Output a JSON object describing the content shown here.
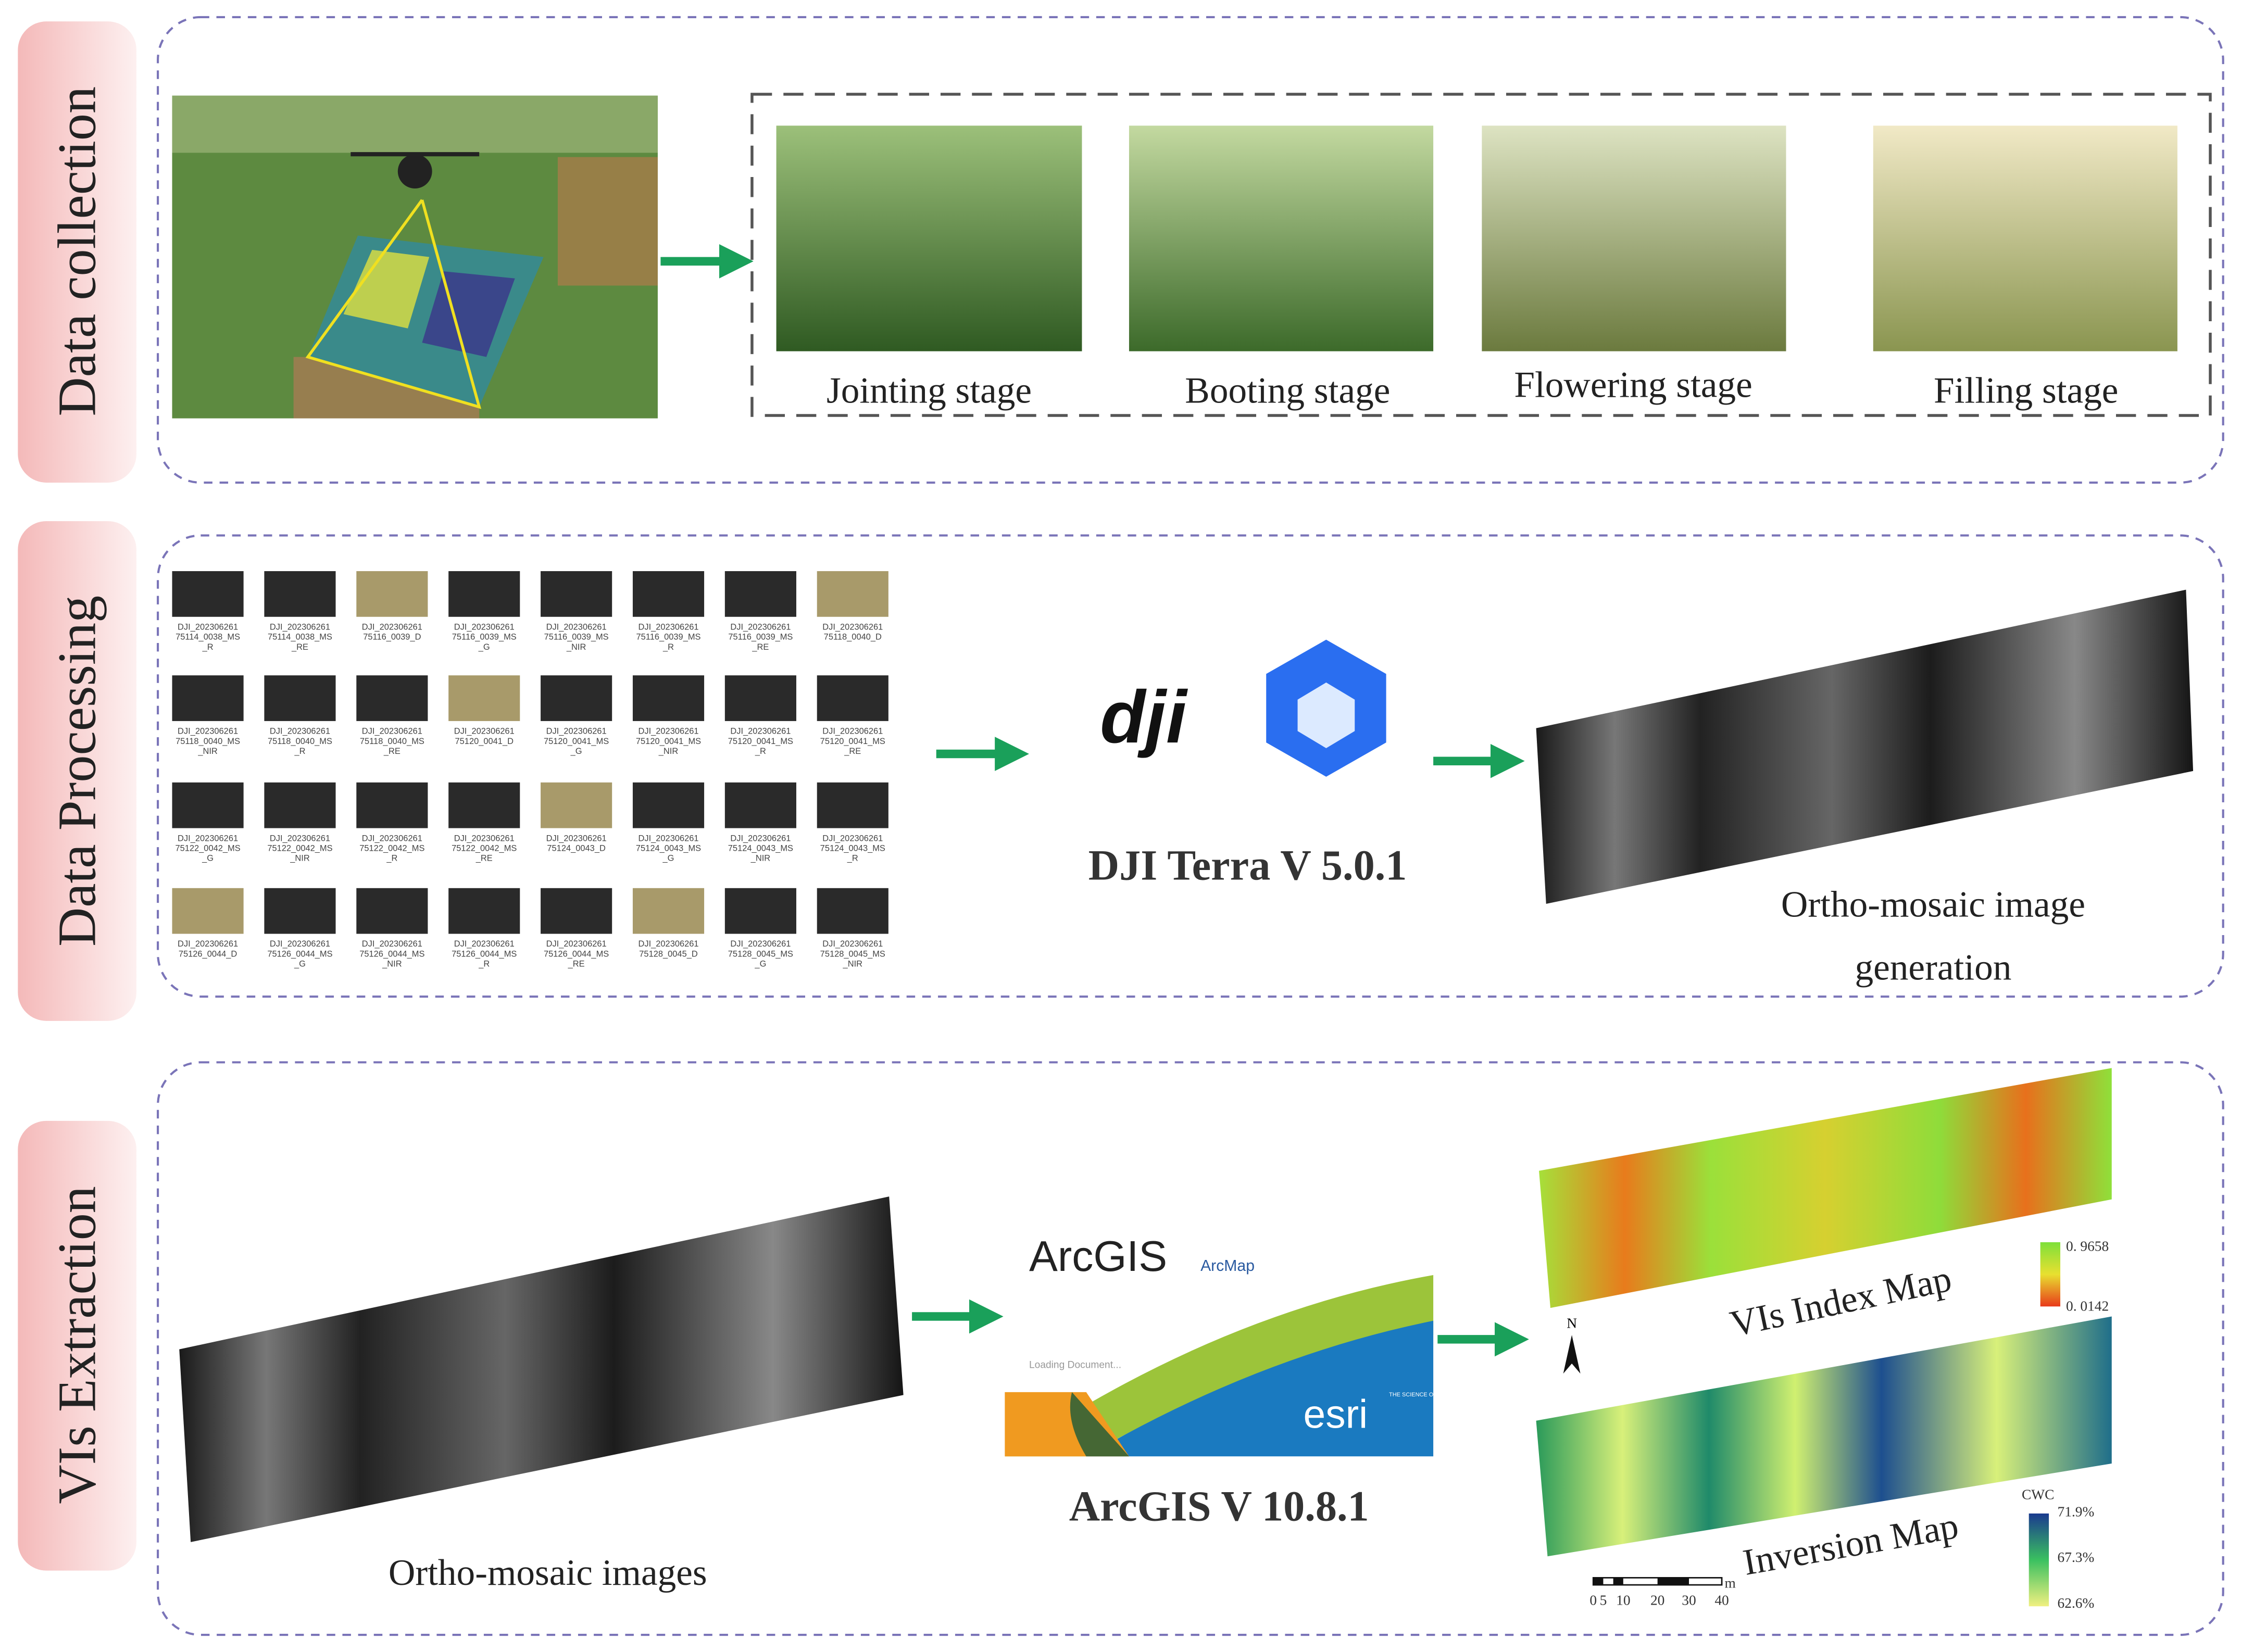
{
  "sections": [
    {
      "label": "Data collection",
      "stages": [
        "Jointing stage",
        "Booting stage",
        "Flowering stage",
        "Filling stage"
      ]
    },
    {
      "label": "Data Processing",
      "software": "DJI Terra V 5.0.1",
      "output": [
        "Ortho-mosaic image",
        "generation"
      ],
      "files": [
        "DJI_20230626175114_0038_MS_R",
        "DJI_20230626175114_0038_MS_RE",
        "DJI_20230626175116_0039_D",
        "DJI_20230626175116_0039_MS_G",
        "DJI_20230626175116_0039_MS_NIR",
        "DJI_20230626175116_0039_MS_R",
        "DJI_20230626175116_0039_MS_RE",
        "DJI_20230626175118_0040_D",
        "DJI_20230626175118_0040_MS_NIR",
        "DJI_20230626175118_0040_MS_R",
        "DJI_20230626175118_0040_MS_RE",
        "DJI_20230626175120_0041_D",
        "DJI_20230626175120_0041_MS_G",
        "DJI_20230626175120_0041_MS_NIR",
        "DJI_20230626175120_0041_MS_R",
        "DJI_20230626175120_0041_MS_RE",
        "DJI_20230626175122_0042_MS_G",
        "DJI_20230626175122_0042_MS_NIR",
        "DJI_20230626175122_0042_MS_R",
        "DJI_20230626175122_0042_MS_RE",
        "DJI_20230626175124_0043_D",
        "DJI_20230626175124_0043_MS_G",
        "DJI_20230626175124_0043_MS_NIR",
        "DJI_20230626175124_0043_MS_R",
        "DJI_20230626175126_0044_D",
        "DJI_20230626175126_0044_MS_G",
        "DJI_20230626175126_0044_MS_NIR",
        "DJI_20230626175126_0044_MS_R",
        "DJI_20230626175126_0044_MS_RE",
        "DJI_20230626175128_0045_D",
        "DJI_20230626175128_0045_MS_G",
        "DJI_20230626175128_0045_MS_NIR"
      ]
    },
    {
      "label": "VIs Extraction",
      "input": "Ortho-mosaic images",
      "arcgis": "ArcGIS",
      "arcmap": "ArcMap",
      "loading": "Loading Document...",
      "esri": "esri",
      "esri_tag": "THE SCIENCE OF WHERE",
      "software": "ArcGIS V 10.8.1",
      "index_map": {
        "title": "VIs Index Map",
        "max": "0. 9658",
        "min": "0. 0142",
        "north": "N"
      },
      "inversion_map": {
        "title": "Inversion Map",
        "legend_title": "CWC",
        "labels": [
          "71.9%",
          "67.3%",
          "62.6%"
        ]
      },
      "scale": {
        "unit": "m",
        "labels": [
          "0",
          "5",
          "10",
          "20",
          "30",
          "40"
        ]
      }
    }
  ]
}
